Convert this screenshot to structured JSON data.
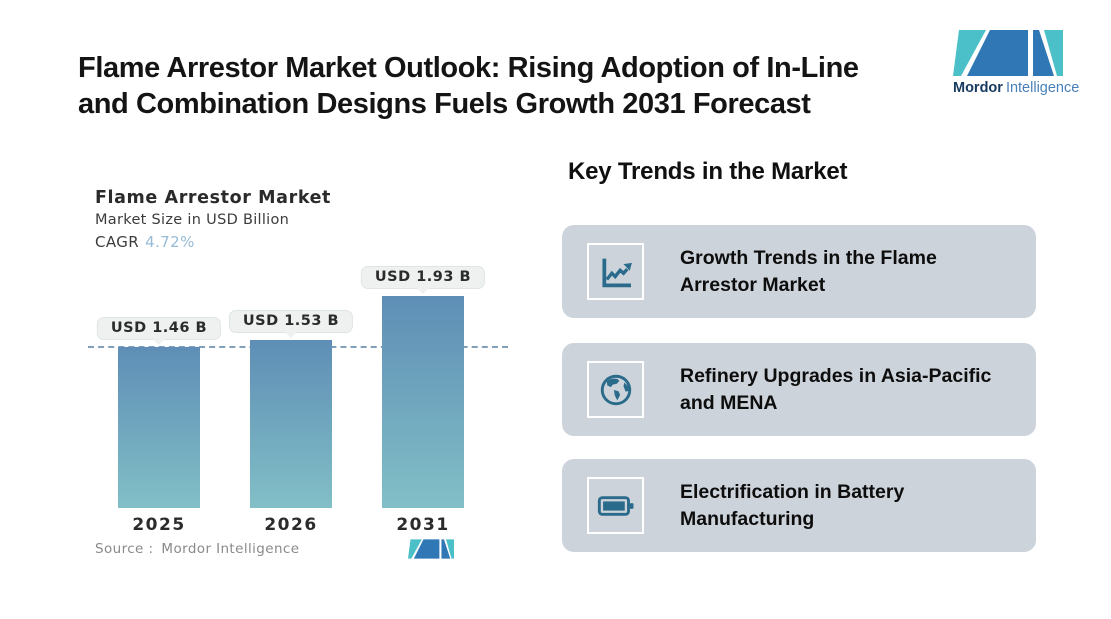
{
  "header": {
    "title_lines": [
      "Flame Arrestor Market Outlook: Rising Adoption of In-Line",
      "and Combination Designs Fuels Growth 2031 Forecast"
    ],
    "logo": {
      "brand_bold": "Mordor",
      "brand_light": "Intelligence"
    }
  },
  "chart": {
    "title": "Flame Arrestor Market",
    "subtitle": "Market Size in USD Billion",
    "cagr_label": "CAGR",
    "cagr_value": "4.72%",
    "source_label": "Source :",
    "source_value": "Mordor Intelligence"
  },
  "chart_data": {
    "type": "bar",
    "title": "Flame Arrestor Market",
    "subtitle": "Market Size in USD Billion",
    "cagr": "4.72%",
    "categories": [
      "2025",
      "2026",
      "2031"
    ],
    "values": [
      1.46,
      1.53,
      1.93
    ],
    "value_labels": [
      "USD 1.46 B",
      "USD 1.53 B",
      "USD 1.93 B"
    ],
    "unit": "USD Billion",
    "ylim": [
      0,
      2.2
    ],
    "reference_line": {
      "style": "dashed",
      "at_value": 1.46
    },
    "grid": "off",
    "legend": "none"
  },
  "trends": {
    "heading": "Key Trends in the Market",
    "cards": [
      {
        "icon": "line-chart-icon",
        "text": "Growth Trends in the Flame Arrestor Market"
      },
      {
        "icon": "globe-icon",
        "text": "Refinery Upgrades in Asia-Pacific and MENA"
      },
      {
        "icon": "battery-icon",
        "text": "Electrification in Battery Manufacturing"
      }
    ]
  },
  "colors": {
    "bar_gradient_top": "#5e8eb6",
    "bar_gradient_bottom": "#82bfc7",
    "dash_line": "#7f9fba",
    "brand_teal": "#4bc0c8",
    "brand_blue": "#2f78b5",
    "logo_text_dark": "#16395f",
    "logo_text_light": "#4a80b8",
    "icon_blue": "#2a6b8c",
    "card_background": "#cdd3da",
    "cagr_value_color": "#96bcd7",
    "callout_background": "#eef1f0"
  }
}
